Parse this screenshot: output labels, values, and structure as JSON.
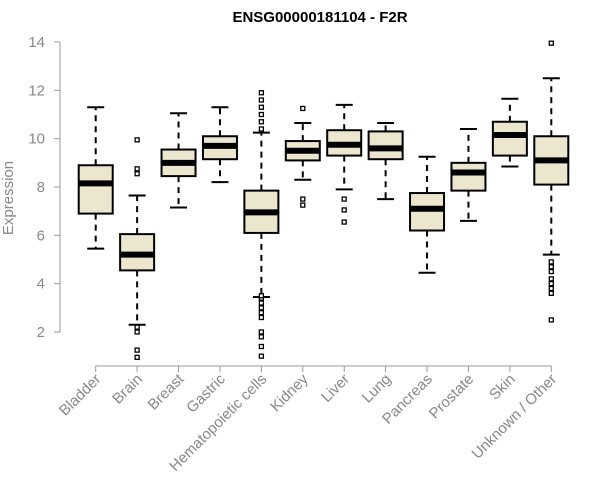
{
  "chart_data": {
    "type": "boxplot",
    "title": "ENSG00000181104 - F2R",
    "xlabel": "",
    "ylabel": "Expression",
    "ylim": [
      0.5,
      14.5
    ],
    "yticks": [
      2,
      4,
      6,
      8,
      10,
      12,
      14
    ],
    "grid": false,
    "box_fill": "#ede6cf",
    "box_stroke": "#000000",
    "categories": [
      "Bladder",
      "Brain",
      "Breast",
      "Gastric",
      "Hematopoietic cells",
      "Kidney",
      "Liver",
      "Lung",
      "Pancreas",
      "Prostate",
      "Skin",
      "Unknown / Other"
    ],
    "boxes": [
      {
        "category": "Bladder",
        "whisker_low": 5.45,
        "q1": 6.9,
        "median": 8.15,
        "q3": 8.9,
        "whisker_high": 11.3,
        "outliers": []
      },
      {
        "category": "Brain",
        "whisker_low": 2.3,
        "q1": 4.55,
        "median": 5.2,
        "q3": 6.05,
        "whisker_high": 7.65,
        "outliers": [
          0.95,
          1.25,
          2.0,
          2.2,
          8.55,
          8.75,
          9.95
        ]
      },
      {
        "category": "Breast",
        "whisker_low": 7.15,
        "q1": 8.45,
        "median": 9.0,
        "q3": 9.55,
        "whisker_high": 11.05,
        "outliers": []
      },
      {
        "category": "Gastric",
        "whisker_low": 8.2,
        "q1": 9.15,
        "median": 9.7,
        "q3": 10.1,
        "whisker_high": 11.3,
        "outliers": []
      },
      {
        "category": "Hematopoietic cells",
        "whisker_low": 3.45,
        "q1": 6.1,
        "median": 6.95,
        "q3": 7.85,
        "whisker_high": 10.25,
        "outliers": [
          1.0,
          1.4,
          1.8,
          2.0,
          2.6,
          2.8,
          3.0,
          3.2,
          3.4,
          3.5,
          10.4,
          10.7,
          11.0,
          11.3,
          11.6,
          11.9
        ]
      },
      {
        "category": "Kidney",
        "whisker_low": 8.3,
        "q1": 9.1,
        "median": 9.5,
        "q3": 9.9,
        "whisker_high": 10.65,
        "outliers": [
          7.25,
          7.5,
          11.25
        ]
      },
      {
        "category": "Liver",
        "whisker_low": 7.9,
        "q1": 9.3,
        "median": 9.75,
        "q3": 10.35,
        "whisker_high": 11.4,
        "outliers": [
          6.55,
          7.05,
          7.5
        ]
      },
      {
        "category": "Lung",
        "whisker_low": 7.5,
        "q1": 9.15,
        "median": 9.6,
        "q3": 10.3,
        "whisker_high": 10.65,
        "outliers": []
      },
      {
        "category": "Pancreas",
        "whisker_low": 4.45,
        "q1": 6.2,
        "median": 7.1,
        "q3": 7.75,
        "whisker_high": 9.25,
        "outliers": []
      },
      {
        "category": "Prostate",
        "whisker_low": 6.6,
        "q1": 7.85,
        "median": 8.6,
        "q3": 9.0,
        "whisker_high": 10.4,
        "outliers": []
      },
      {
        "category": "Skin",
        "whisker_low": 8.85,
        "q1": 9.3,
        "median": 10.15,
        "q3": 10.7,
        "whisker_high": 11.65,
        "outliers": []
      },
      {
        "category": "Unknown / Other",
        "whisker_low": 5.2,
        "q1": 8.1,
        "median": 9.1,
        "q3": 10.1,
        "whisker_high": 12.5,
        "outliers": [
          2.5,
          3.6,
          3.8,
          4.0,
          4.2,
          4.5,
          4.7,
          4.9,
          13.95
        ]
      }
    ]
  }
}
